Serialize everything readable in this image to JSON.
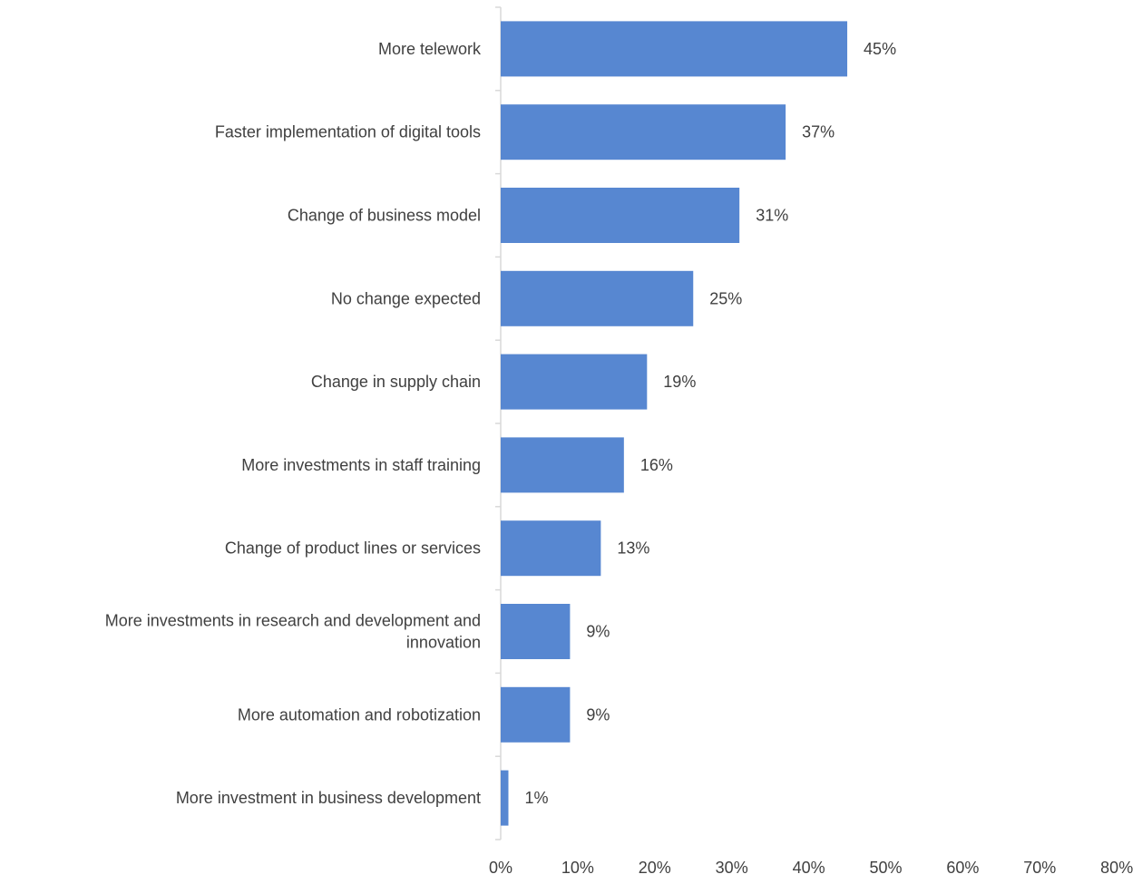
{
  "chart_data": {
    "type": "bar",
    "orientation": "horizontal",
    "categories": [
      "More telework",
      "Faster implementation of digital tools",
      "Change of business model",
      "No change expected",
      "Change in supply chain",
      "More investments in staff training",
      "Change of product lines or services",
      "More investments in research and development and innovation",
      "More automation and robotization",
      "More investment in business development"
    ],
    "category_lines": [
      [
        "More telework"
      ],
      [
        "Faster implementation of digital tools"
      ],
      [
        "Change of business model"
      ],
      [
        "No change expected"
      ],
      [
        "Change in supply chain"
      ],
      [
        "More investments in staff training"
      ],
      [
        "Change of product lines or services"
      ],
      [
        "More investments in research and development and",
        "innovation"
      ],
      [
        "More automation and robotization"
      ],
      [
        "More investment in business development"
      ]
    ],
    "values": [
      45,
      37,
      31,
      25,
      19,
      16,
      13,
      9,
      9,
      1
    ],
    "value_labels": [
      "45%",
      "37%",
      "31%",
      "25%",
      "19%",
      "16%",
      "13%",
      "9%",
      "9%",
      "1%"
    ],
    "xlim": [
      0,
      80
    ],
    "xticks": [
      0,
      10,
      20,
      30,
      40,
      50,
      60,
      70,
      80
    ],
    "xtick_labels": [
      "0%",
      "10%",
      "20%",
      "30%",
      "40%",
      "50%",
      "60%",
      "70%",
      "80%"
    ],
    "grid": false,
    "legend": "none",
    "title": "",
    "xlabel": "",
    "ylabel": "",
    "colors": {
      "bar": "#5787D1",
      "text": "#404040",
      "axis": "#D9D9D9"
    }
  }
}
